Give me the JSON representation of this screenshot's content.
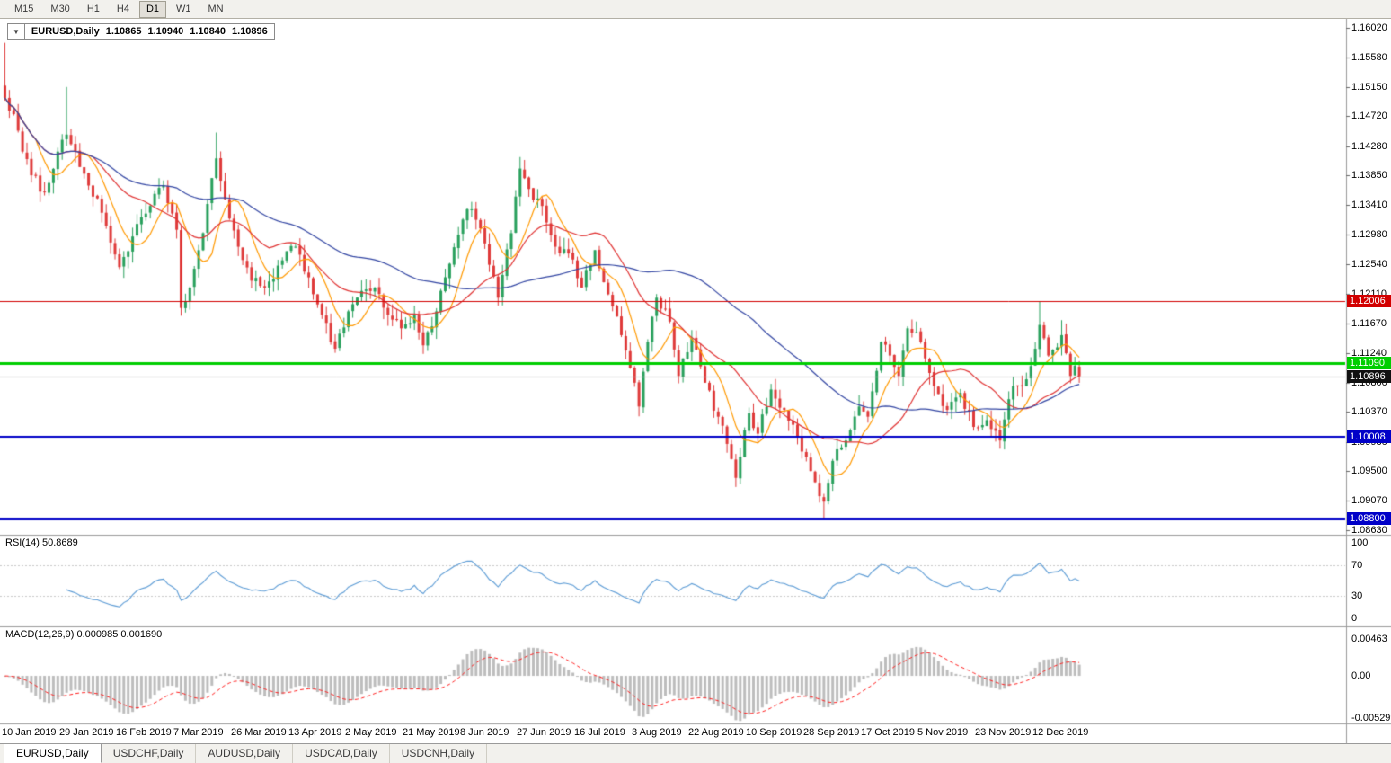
{
  "colors": {
    "up": "#28A05C",
    "down": "#DF3A3A",
    "ma_fast": "#FF9900",
    "ma_mid": "#E03232",
    "ma_slow": "#3346A3",
    "rsi": "#5B9BD5",
    "macd_hist": "#BDBDBD",
    "macd_signal": "#FF2020",
    "line_red": "#D20000",
    "line_green": "#00CE00",
    "line_blue": "#0000C8",
    "line_current": "#B4B4B4",
    "current_tag_bg": "#111111"
  },
  "toolbar": {
    "timeframes": [
      "M15",
      "M30",
      "H1",
      "H4",
      "D1",
      "W1",
      "MN"
    ],
    "active": "D1"
  },
  "chart_header": {
    "arrow": "▼",
    "symbol": "EURUSD,Daily",
    "open": "1.10865",
    "high": "1.10940",
    "low": "1.10840",
    "close": "1.10896"
  },
  "price_axis": {
    "labels": [
      "1.16020",
      "1.15580",
      "1.15150",
      "1.14720",
      "1.14280",
      "1.13850",
      "1.13410",
      "1.12980",
      "1.12540",
      "1.12110",
      "1.11670",
      "1.11240",
      "1.10800",
      "1.10370",
      "1.09930",
      "1.09500",
      "1.09070",
      "1.08630"
    ]
  },
  "hlines": [
    {
      "value": 1.12006,
      "label": "1.12006",
      "color_key": "line_red",
      "thickness": 1
    },
    {
      "value": 1.1109,
      "label": "1.11090",
      "color_key": "line_green",
      "thickness": 3
    },
    {
      "value": 1.10008,
      "label": "1.10008",
      "color_key": "line_blue",
      "thickness": 2
    },
    {
      "value": 1.088,
      "label": "1.08800",
      "color_key": "line_blue",
      "thickness": 3
    }
  ],
  "current_price": {
    "value": 1.10896,
    "label": "1.10896"
  },
  "rsi_panel": {
    "title": "RSI(14) 50.8689",
    "period": 14,
    "current_value": 50.8689,
    "levels": [
      {
        "label": "100",
        "value": 100
      },
      {
        "label": "70",
        "value": 70
      },
      {
        "label": "30",
        "value": 30
      },
      {
        "label": "0",
        "value": 0
      }
    ]
  },
  "macd_panel": {
    "title": "MACD(12,26,9) 0.000985 0.001690",
    "params": [
      12,
      26,
      9
    ],
    "macd_value": 0.000985,
    "signal_value": 0.00169,
    "axis": [
      {
        "label": "0.00463",
        "value": 0.00463
      },
      {
        "label": "0.00",
        "value": 0
      },
      {
        "label": "-0.005299",
        "value": -0.005299
      }
    ]
  },
  "date_axis": [
    "10 Jan 2019",
    "29 Jan 2019",
    "16 Feb 2019",
    "7 Mar 2019",
    "26 Mar 2019",
    "13 Apr 2019",
    "2 May 2019",
    "21 May 2019",
    "8 Jun 2019",
    "27 Jun 2019",
    "16 Jul 2019",
    "3 Aug 2019",
    "22 Aug 2019",
    "10 Sep 2019",
    "28 Sep 2019",
    "17 Oct 2019",
    "5 Nov 2019",
    "23 Nov 2019",
    "12 Dec 2019"
  ],
  "tabs": {
    "items": [
      "EURUSD,Daily",
      "USDCHF,Daily",
      "AUDUSD,Daily",
      "USDCAD,Daily",
      "USDCNH,Daily"
    ],
    "active_index": 0
  },
  "chart_data": {
    "type": "candlestick",
    "symbol": "EURUSD",
    "timeframe": "Daily",
    "title": "EURUSD,Daily",
    "visible_range": {
      "price_min": 1.0863,
      "price_max": 1.1602,
      "date_start": "10 Jan 2019",
      "date_end": "12 Dec 2019"
    },
    "candle_count": 245,
    "price_path": [
      [
        0,
        1.1499
      ],
      [
        2,
        1.1475
      ],
      [
        4,
        1.142
      ],
      [
        6,
        1.1385
      ],
      [
        9,
        1.136
      ],
      [
        12,
        1.142
      ],
      [
        14,
        1.1445
      ],
      [
        16,
        1.142
      ],
      [
        19,
        1.137
      ],
      [
        22,
        1.133
      ],
      [
        26,
        1.125
      ],
      [
        29,
        1.1295
      ],
      [
        33,
        1.134
      ],
      [
        36,
        1.137
      ],
      [
        39,
        1.1305
      ],
      [
        40,
        1.119
      ],
      [
        42,
        1.122
      ],
      [
        45,
        1.13
      ],
      [
        48,
        1.141
      ],
      [
        50,
        1.135
      ],
      [
        53,
        1.128
      ],
      [
        56,
        1.123
      ],
      [
        59,
        1.122
      ],
      [
        63,
        1.126
      ],
      [
        66,
        1.128
      ],
      [
        69,
        1.1235
      ],
      [
        72,
        1.118
      ],
      [
        75,
        1.113
      ],
      [
        78,
        1.1185
      ],
      [
        81,
        1.1215
      ],
      [
        84,
        1.122
      ],
      [
        87,
        1.118
      ],
      [
        90,
        1.116
      ],
      [
        93,
        1.118
      ],
      [
        95,
        1.1135
      ],
      [
        98,
        1.1185
      ],
      [
        101,
        1.1255
      ],
      [
        104,
        1.132
      ],
      [
        106,
        1.1335
      ],
      [
        109,
        1.1285
      ],
      [
        112,
        1.1205
      ],
      [
        115,
        1.13
      ],
      [
        117,
        1.1395
      ],
      [
        119,
        1.1365
      ],
      [
        122,
        1.134
      ],
      [
        125,
        1.128
      ],
      [
        128,
        1.127
      ],
      [
        131,
        1.122
      ],
      [
        134,
        1.1275
      ],
      [
        137,
        1.121
      ],
      [
        140,
        1.115
      ],
      [
        143,
        1.108
      ],
      [
        144,
        1.1045
      ],
      [
        146,
        1.114
      ],
      [
        148,
        1.1205
      ],
      [
        151,
        1.117
      ],
      [
        153,
        1.109
      ],
      [
        156,
        1.1145
      ],
      [
        159,
        1.108
      ],
      [
        162,
        1.103
      ],
      [
        164,
        1.099
      ],
      [
        166,
        1.094
      ],
      [
        169,
        1.1035
      ],
      [
        171,
        1.1005
      ],
      [
        174,
        1.107
      ],
      [
        177,
        1.104
      ],
      [
        180,
        1.1
      ],
      [
        183,
        1.095
      ],
      [
        186,
        1.0905
      ],
      [
        188,
        1.0965
      ],
      [
        191,
        1.0995
      ],
      [
        194,
        1.1045
      ],
      [
        196,
        1.103
      ],
      [
        199,
        1.114
      ],
      [
        201,
        1.112
      ],
      [
        203,
        1.109
      ],
      [
        205,
        1.116
      ],
      [
        208,
        1.114
      ],
      [
        211,
        1.1075
      ],
      [
        214,
        1.104
      ],
      [
        217,
        1.1065
      ],
      [
        220,
        1.1015
      ],
      [
        223,
        1.1025
      ],
      [
        226,
        1.0995
      ],
      [
        229,
        1.1075
      ],
      [
        232,
        1.1085
      ],
      [
        234,
        1.113
      ],
      [
        235,
        1.1165
      ],
      [
        237,
        1.112
      ],
      [
        240,
        1.115
      ],
      [
        242,
        1.109
      ],
      [
        243,
        1.1105
      ],
      [
        244,
        1.10896
      ]
    ],
    "spikes": [
      {
        "i": 0,
        "h": 1.158
      },
      {
        "i": 14,
        "h": 1.1515
      },
      {
        "i": 48,
        "h": 1.1448
      },
      {
        "i": 117,
        "h": 1.1412
      },
      {
        "i": 186,
        "l": 1.0879
      },
      {
        "i": 235,
        "h": 1.1199
      },
      {
        "i": 240,
        "h": 1.1172
      }
    ],
    "moving_averages": [
      {
        "period": 8,
        "color_key": "ma_fast"
      },
      {
        "period": 21,
        "color_key": "ma_mid"
      },
      {
        "period": 55,
        "color_key": "ma_slow"
      }
    ],
    "indicators": [
      {
        "type": "RSI",
        "period": 14,
        "value": 50.8689
      },
      {
        "type": "MACD",
        "params": [
          12,
          26,
          9
        ],
        "macd": 0.000985,
        "signal": 0.00169
      }
    ]
  }
}
